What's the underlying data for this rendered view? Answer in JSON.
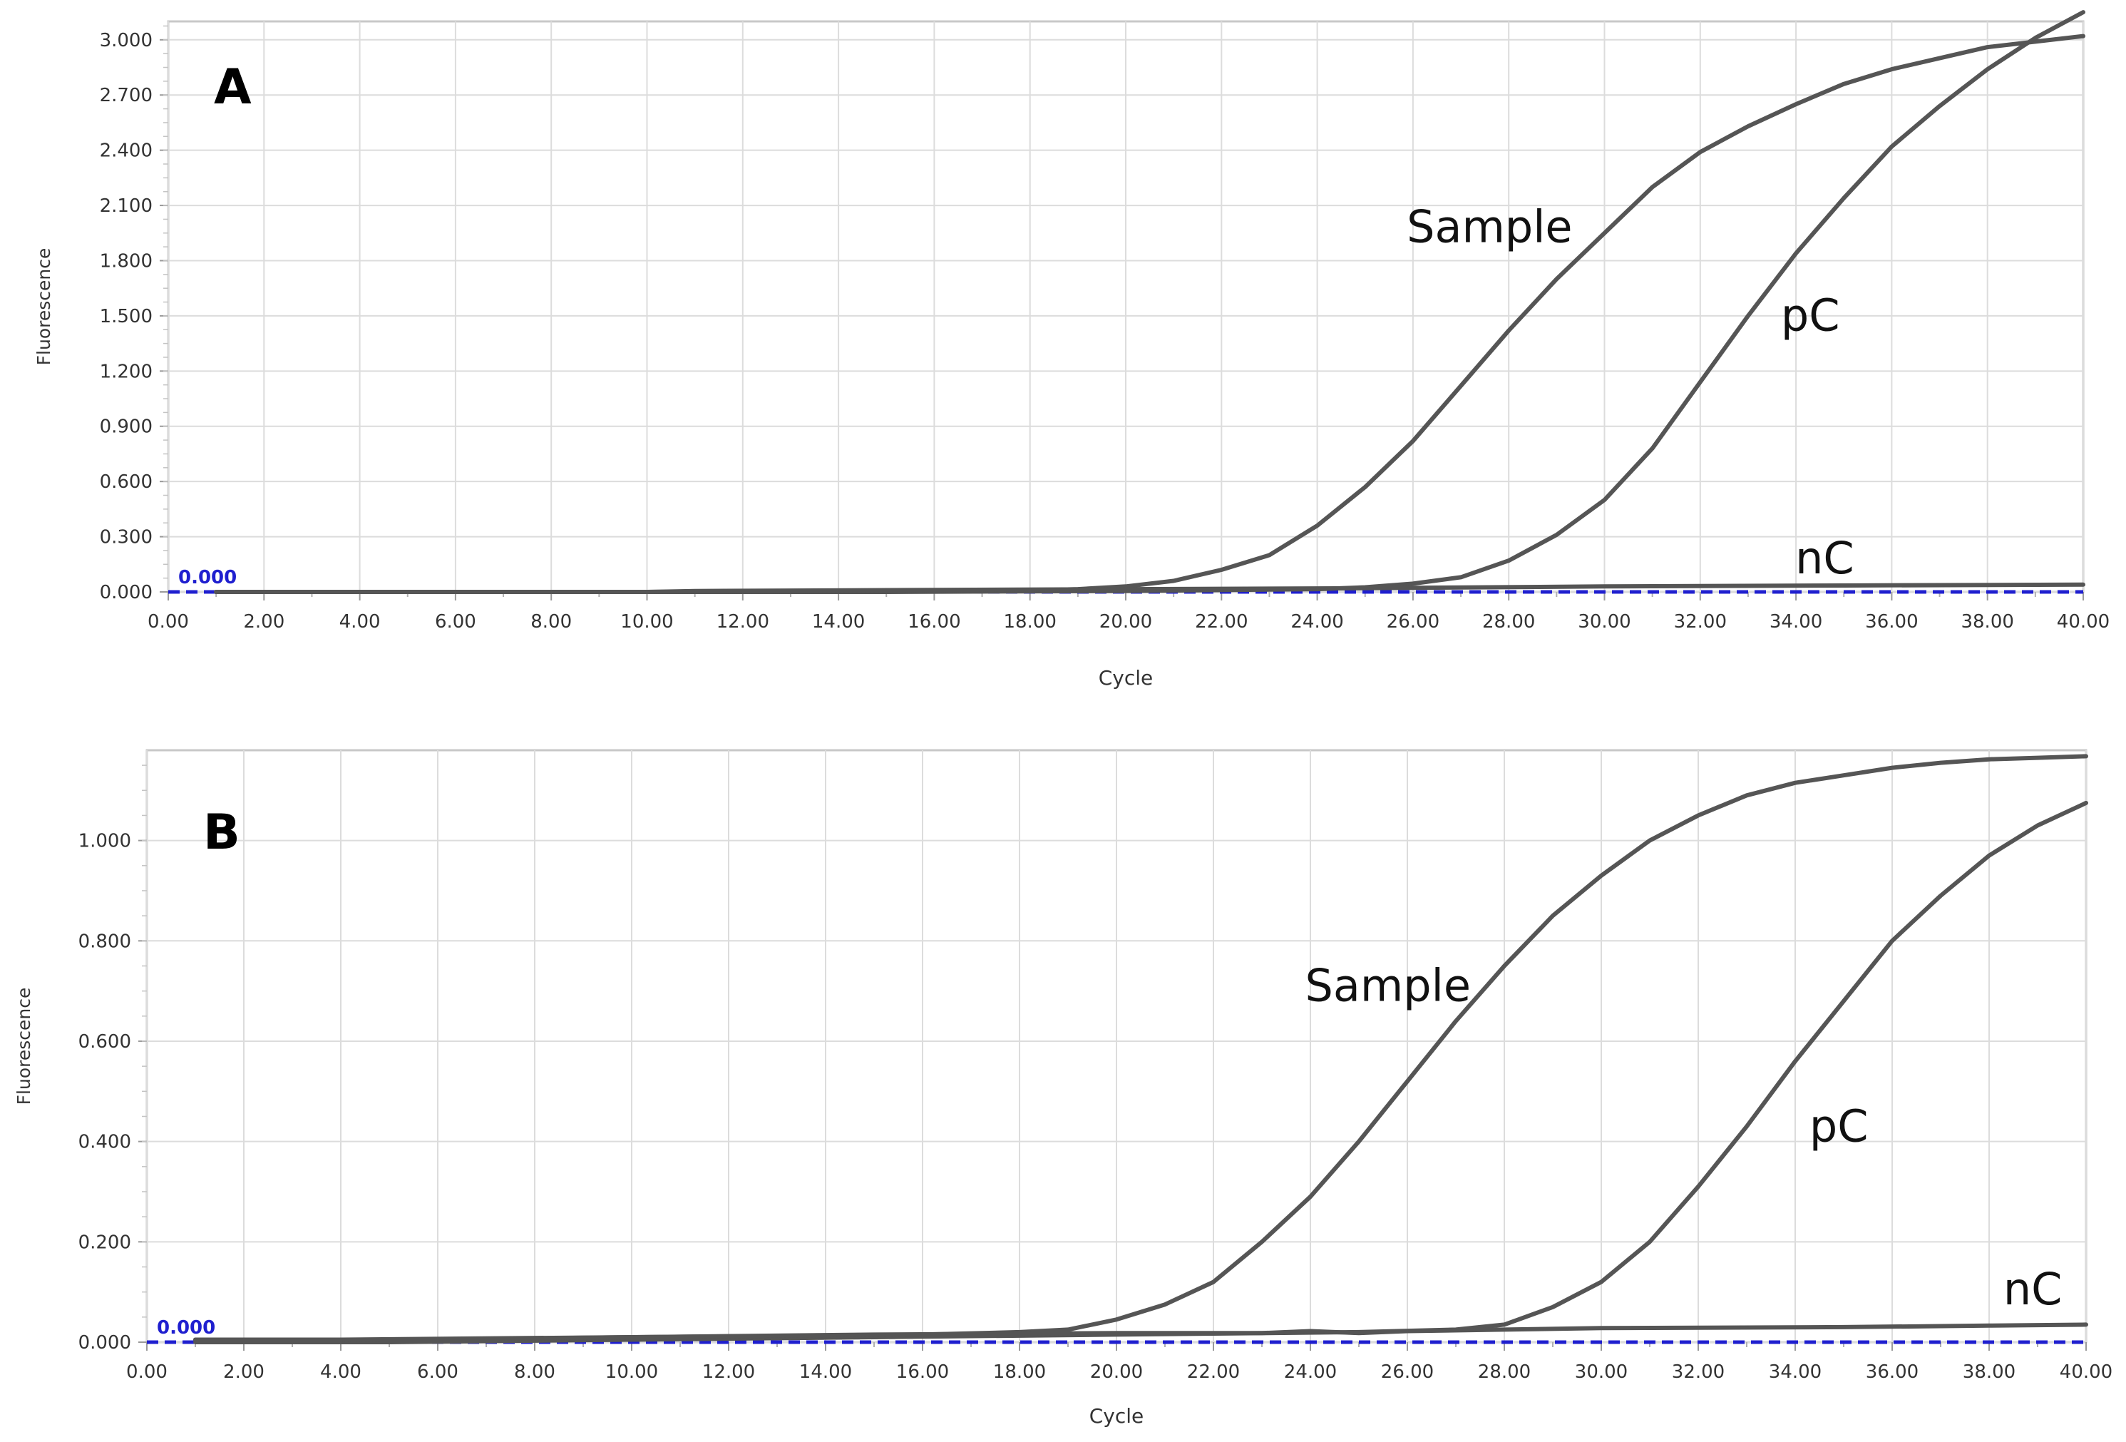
{
  "chart_data": [
    {
      "type": "line",
      "panel_label": "A",
      "xlabel": "Cycle",
      "ylabel": "Fluorescence",
      "xlim": [
        0,
        40
      ],
      "ylim": [
        0,
        3.1
      ],
      "x_ticks": [
        "0.00",
        "2.00",
        "4.00",
        "6.00",
        "8.00",
        "10.00",
        "12.00",
        "14.00",
        "16.00",
        "18.00",
        "20.00",
        "22.00",
        "24.00",
        "26.00",
        "28.00",
        "30.00",
        "32.00",
        "34.00",
        "36.00",
        "38.00",
        "40.00"
      ],
      "y_ticks": [
        "0.000",
        "0.300",
        "0.600",
        "0.900",
        "1.200",
        "1.500",
        "1.800",
        "2.100",
        "2.400",
        "2.700",
        "3.000"
      ],
      "threshold": {
        "label": "0.000",
        "value": 0,
        "color": "#1f1fcf"
      },
      "grid": true,
      "line_color": "#555555",
      "series": [
        {
          "name": "Sample",
          "x": [
            1,
            5,
            10,
            15,
            18,
            19,
            20,
            21,
            22,
            23,
            24,
            25,
            26,
            27,
            28,
            29,
            30,
            31,
            32,
            33,
            34,
            35,
            36,
            37,
            38,
            39,
            40
          ],
          "values": [
            0,
            0,
            0,
            0.005,
            0.008,
            0.015,
            0.03,
            0.06,
            0.12,
            0.2,
            0.36,
            0.57,
            0.82,
            1.12,
            1.42,
            1.7,
            1.95,
            2.2,
            2.39,
            2.53,
            2.65,
            2.76,
            2.84,
            2.9,
            2.96,
            2.99,
            3.02
          ]
        },
        {
          "name": "pC",
          "x": [
            1,
            5,
            10,
            15,
            20,
            22,
            24,
            25,
            26,
            27,
            28,
            29,
            30,
            31,
            32,
            33,
            34,
            35,
            36,
            37,
            38,
            39,
            40
          ],
          "values": [
            0,
            0,
            0,
            0,
            0.005,
            0.01,
            0.015,
            0.025,
            0.045,
            0.08,
            0.17,
            0.31,
            0.5,
            0.78,
            1.14,
            1.5,
            1.84,
            2.14,
            2.42,
            2.64,
            2.84,
            3.01,
            3.15
          ]
        },
        {
          "name": "nC",
          "x": [
            1,
            5,
            10,
            11,
            20,
            25,
            30,
            35,
            40
          ],
          "values": [
            0,
            0,
            0,
            0.005,
            0.015,
            0.02,
            0.03,
            0.035,
            0.04
          ]
        }
      ],
      "annotations": [
        {
          "text": "Sample",
          "x": 27.6,
          "y": 1.9
        },
        {
          "text": "pC",
          "x": 34.3,
          "y": 1.42
        },
        {
          "text": "nC",
          "x": 34.6,
          "y": 0.1
        }
      ]
    },
    {
      "type": "line",
      "panel_label": "B",
      "xlabel": "Cycle",
      "ylabel": "Fluorescence",
      "xlim": [
        0,
        40
      ],
      "ylim": [
        0,
        1.18
      ],
      "x_ticks": [
        "0.00",
        "2.00",
        "4.00",
        "6.00",
        "8.00",
        "10.00",
        "12.00",
        "14.00",
        "16.00",
        "18.00",
        "20.00",
        "22.00",
        "24.00",
        "26.00",
        "28.00",
        "30.00",
        "32.00",
        "34.00",
        "36.00",
        "38.00",
        "40.00"
      ],
      "y_ticks": [
        "0.000",
        "0.200",
        "0.400",
        "0.600",
        "0.800",
        "1.000"
      ],
      "threshold": {
        "label": "0.000",
        "value": 0,
        "color": "#1f1fcf"
      },
      "grid": true,
      "line_color": "#555555",
      "series": [
        {
          "name": "Sample",
          "x": [
            1,
            2,
            4,
            10,
            16,
            18,
            19,
            20,
            21,
            22,
            23,
            24,
            25,
            26,
            27,
            28,
            29,
            30,
            31,
            32,
            33,
            34,
            35,
            36,
            37,
            38,
            39,
            40
          ],
          "values": [
            0.005,
            0,
            0.003,
            0.01,
            0.015,
            0.02,
            0.025,
            0.045,
            0.075,
            0.12,
            0.2,
            0.29,
            0.4,
            0.52,
            0.64,
            0.75,
            0.85,
            0.93,
            1.0,
            1.05,
            1.09,
            1.115,
            1.13,
            1.145,
            1.155,
            1.162,
            1.165,
            1.168
          ]
        },
        {
          "name": "pC",
          "x": [
            1,
            5,
            10,
            15,
            20,
            25,
            27,
            28,
            29,
            30,
            31,
            32,
            33,
            34,
            35,
            36,
            37,
            38,
            39,
            40
          ],
          "values": [
            0,
            0,
            0.005,
            0.01,
            0.015,
            0.02,
            0.025,
            0.035,
            0.07,
            0.12,
            0.2,
            0.31,
            0.43,
            0.56,
            0.68,
            0.8,
            0.89,
            0.97,
            1.03,
            1.075
          ]
        },
        {
          "name": "nC",
          "x": [
            1,
            4,
            10,
            15,
            20,
            23,
            24,
            25,
            26,
            28,
            30,
            35,
            38,
            40
          ],
          "values": [
            0.005,
            0.005,
            0.01,
            0.015,
            0.018,
            0.018,
            0.022,
            0.018,
            0.022,
            0.025,
            0.028,
            0.03,
            0.033,
            0.035
          ]
        }
      ],
      "annotations": [
        {
          "text": "Sample",
          "x": 25.6,
          "y": 0.68
        },
        {
          "text": "pC",
          "x": 34.9,
          "y": 0.4
        },
        {
          "text": "nC",
          "x": 38.9,
          "y": 0.075
        }
      ]
    }
  ]
}
